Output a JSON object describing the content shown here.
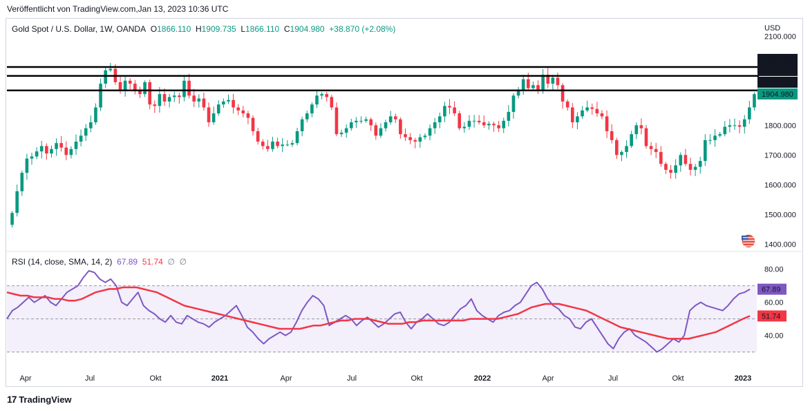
{
  "header": {
    "published": "Veröffentlicht von TradingView.com,",
    "datetime": "Jan 13, 2023 10:36 UTC"
  },
  "legend": {
    "symbol": "Gold Spot / U.S. Dollar, 1W, OANDA",
    "o_label": "O",
    "o_value": "1866.110",
    "h_label": "H",
    "h_value": "1909.735",
    "l_label": "L",
    "l_value": "1866.110",
    "c_label": "C",
    "c_value": "1904.980",
    "change": "+38.870 (+2.08%)"
  },
  "rsi_legend": {
    "title": "RSI (14, close, SMA, 14, 2)",
    "rsi_value": "67.89",
    "ma_value": "51.74",
    "null1": "∅",
    "null2": "∅"
  },
  "footer": {
    "brand": "TradingView",
    "logo_text": "17"
  },
  "colors": {
    "up": "#089981",
    "down": "#f23645",
    "rsi": "#7e57c2",
    "rsi_ma": "#f23645",
    "band_fill": "#f3effb",
    "level_line": "#000000",
    "grid": "#f0f3fa"
  },
  "chart_data": [
    {
      "type": "candlestick",
      "title": "Gold Spot / U.S. Dollar, 1W, OANDA",
      "currency": "USD",
      "y_ticks": [
        1400,
        1500,
        1600,
        1700,
        1800,
        1900,
        2000,
        2100
      ],
      "ylim": [
        1380,
        2110
      ],
      "x_ticks": [
        "Apr",
        "Jul",
        "Okt",
        "2021",
        "Apr",
        "Jul",
        "Okt",
        "2022",
        "Apr",
        "Jul",
        "Okt",
        "2023"
      ],
      "horizontal_levels": [
        1996.018,
        1966.036,
        1917.316
      ],
      "last_price": 1904.98,
      "closes": [
        1505,
        1578,
        1640,
        1688,
        1695,
        1712,
        1730,
        1705,
        1720,
        1740,
        1725,
        1700,
        1720,
        1745,
        1765,
        1790,
        1810,
        1860,
        1940,
        1985,
        1990,
        1945,
        1920,
        1950,
        1940,
        1915,
        1905,
        1945,
        1870,
        1865,
        1905,
        1880,
        1895,
        1900,
        1895,
        1950,
        1900,
        1880,
        1890,
        1860,
        1810,
        1840,
        1870,
        1880,
        1885,
        1860,
        1850,
        1840,
        1825,
        1780,
        1745,
        1730,
        1720,
        1745,
        1730,
        1735,
        1735,
        1740,
        1780,
        1820,
        1840,
        1870,
        1900,
        1905,
        1895,
        1860,
        1770,
        1775,
        1790,
        1810,
        1815,
        1815,
        1820,
        1800,
        1765,
        1790,
        1810,
        1830,
        1820,
        1770,
        1760,
        1750,
        1745,
        1760,
        1765,
        1790,
        1810,
        1830,
        1865,
        1860,
        1840,
        1790,
        1795,
        1815,
        1815,
        1810,
        1800,
        1805,
        1800,
        1790,
        1815,
        1845,
        1900,
        1920,
        1955,
        1925,
        1935,
        1920,
        1970,
        1940,
        1960,
        1935,
        1880,
        1860,
        1810,
        1830,
        1850,
        1860,
        1855,
        1840,
        1830,
        1780,
        1750,
        1700,
        1710,
        1730,
        1770,
        1800,
        1790,
        1730,
        1720,
        1710,
        1670,
        1650,
        1640,
        1665,
        1700,
        1670,
        1650,
        1660,
        1680,
        1750,
        1750,
        1765,
        1770,
        1795,
        1800,
        1800,
        1795,
        1820,
        1860,
        1905
      ]
    },
    {
      "type": "line",
      "title": "RSI (14, close, SMA, 14, 2)",
      "y_ticks": [
        40,
        60,
        80
      ],
      "ylim": [
        24,
        84
      ],
      "band": [
        30,
        70
      ],
      "middle": 50,
      "series": [
        {
          "name": "RSI",
          "values": [
            50,
            55,
            57,
            60,
            63,
            60,
            62,
            64,
            60,
            58,
            62,
            66,
            68,
            70,
            75,
            79,
            78,
            74,
            72,
            74,
            70,
            60,
            58,
            62,
            66,
            58,
            55,
            53,
            50,
            48,
            52,
            48,
            47,
            52,
            50,
            48,
            47,
            45,
            48,
            50,
            52,
            55,
            58,
            52,
            45,
            42,
            38,
            35,
            38,
            40,
            42,
            40,
            42,
            48,
            55,
            60,
            64,
            62,
            58,
            46,
            48,
            50,
            52,
            50,
            46,
            49,
            51,
            48,
            45,
            47,
            50,
            53,
            54,
            48,
            44,
            48,
            50,
            53,
            50,
            47,
            46,
            48,
            52,
            56,
            58,
            62,
            55,
            52,
            50,
            48,
            52,
            54,
            55,
            58,
            60,
            65,
            70,
            72,
            68,
            62,
            58,
            56,
            52,
            50,
            45,
            44,
            48,
            50,
            45,
            40,
            35,
            32,
            38,
            42,
            44,
            40,
            38,
            36,
            33,
            30,
            32,
            35,
            38,
            36,
            40,
            55,
            58,
            60,
            58,
            57,
            56,
            55,
            58,
            62,
            65,
            66,
            67.89
          ]
        },
        {
          "name": "MA",
          "values": [
            66,
            65,
            64,
            64,
            63,
            63,
            63,
            62,
            62,
            61,
            61,
            62,
            64,
            66,
            67,
            68,
            68,
            69,
            69,
            69,
            68,
            67,
            66,
            64,
            62,
            60,
            58,
            57,
            56,
            55,
            54,
            53,
            52,
            51,
            50,
            49,
            48,
            47,
            46,
            45,
            44,
            44,
            44,
            44,
            45,
            46,
            46,
            47,
            48,
            49,
            49,
            50,
            50,
            50,
            49,
            48,
            47,
            47,
            47,
            48,
            48,
            49,
            49,
            49,
            49,
            49,
            49,
            49,
            50,
            50,
            50,
            50,
            50,
            51,
            52,
            53,
            55,
            57,
            58,
            59,
            59,
            59,
            58,
            57,
            56,
            55,
            53,
            51,
            49,
            47,
            45,
            44,
            43,
            42,
            41,
            40,
            39,
            38,
            38,
            38,
            38,
            39,
            40,
            41,
            42,
            44,
            46,
            48,
            50,
            51.74
          ]
        }
      ]
    }
  ]
}
